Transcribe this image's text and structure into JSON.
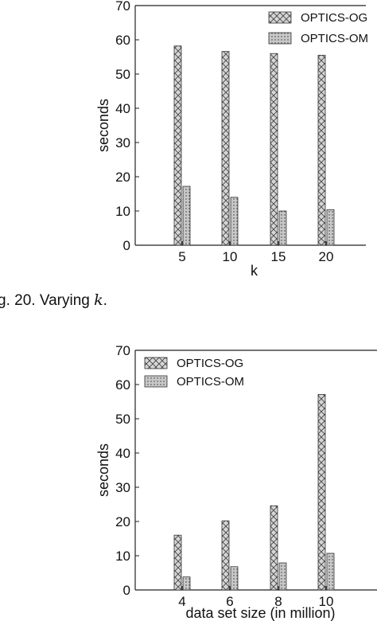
{
  "caption": {
    "prefix": "g. 20. Varying",
    "math": "k",
    "suffix": "."
  },
  "chart_data": [
    {
      "type": "bar",
      "categories": [
        "5",
        "10",
        "15",
        "20"
      ],
      "series": [
        {
          "name": "OPTICS-OG",
          "values": [
            58.2,
            56.6,
            56.0,
            55.5
          ]
        },
        {
          "name": "OPTICS-OM",
          "values": [
            17.2,
            14.0,
            10.0,
            10.4
          ]
        }
      ],
      "xlabel": "k",
      "ylabel": "seconds",
      "ylim": [
        0,
        70
      ],
      "yticks": [
        0,
        10,
        20,
        30,
        40,
        50,
        60,
        70
      ],
      "legend": "top-right",
      "grid": false
    },
    {
      "type": "bar",
      "categories": [
        "4",
        "6",
        "8",
        "10"
      ],
      "series": [
        {
          "name": "OPTICS-OG",
          "values": [
            16.0,
            20.2,
            24.6,
            57.1
          ]
        },
        {
          "name": "OPTICS-OM",
          "values": [
            3.8,
            6.8,
            7.9,
            10.7
          ]
        }
      ],
      "xlabel": "data set size (in million)",
      "ylabel": "seconds",
      "ylim": [
        0,
        70
      ],
      "yticks": [
        0,
        10,
        20,
        30,
        40,
        50,
        60,
        70
      ],
      "legend": "top-left",
      "grid": false
    }
  ]
}
